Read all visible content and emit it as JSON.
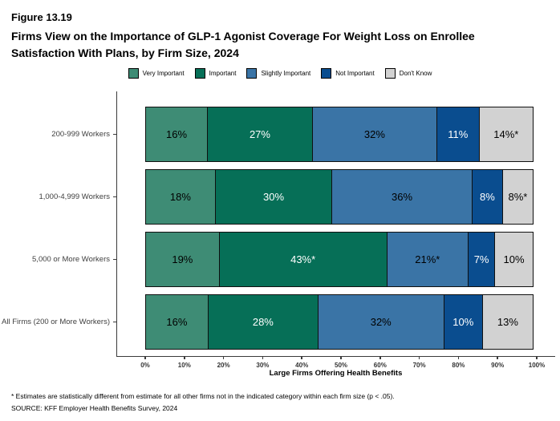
{
  "figure_label": "Figure 13.19",
  "title": "Firms View on the Importance of GLP-1 Agonist Coverage For Weight Loss on Enrollee Satisfaction With Plans, by Firm Size, 2024",
  "chart_data": {
    "type": "bar",
    "orientation": "horizontal-stacked",
    "stacked": true,
    "xlim": [
      0,
      100
    ],
    "grid": false,
    "legend_position": "top-center",
    "categories": [
      "200-999 Workers",
      "1,000-4,999 Workers",
      "5,000 or More Workers",
      "All Firms (200 or More Workers)"
    ],
    "series": [
      {
        "name": "Very Important",
        "color": "#3E8C75",
        "label_color": "#000000",
        "values": [
          16,
          18,
          19,
          16
        ],
        "labels": [
          "16%",
          "18%",
          "19%",
          "16%"
        ]
      },
      {
        "name": "Important",
        "color": "#066F57",
        "label_color": "#FFFFFF",
        "values": [
          27,
          30,
          43,
          28
        ],
        "labels": [
          "27%",
          "30%",
          "43%*",
          "28%"
        ]
      },
      {
        "name": "Slightly Important",
        "color": "#3A74A6",
        "label_color": "#000000",
        "values": [
          32,
          36,
          21,
          32
        ],
        "labels": [
          "32%",
          "36%",
          "21%*",
          "32%"
        ]
      },
      {
        "name": "Not Important",
        "color": "#0A4D8F",
        "label_color": "#FFFFFF",
        "values": [
          11,
          8,
          7,
          10
        ],
        "labels": [
          "11%",
          "8%",
          "7%",
          "10%"
        ]
      },
      {
        "name": "Don't Know",
        "color": "#D2D2D2",
        "label_color": "#000000",
        "values": [
          14,
          8,
          10,
          13
        ],
        "labels": [
          "14%*",
          "8%*",
          "10%",
          "13%"
        ]
      }
    ],
    "x_ticks": [
      "0%",
      "10%",
      "20%",
      "30%",
      "40%",
      "50%",
      "60%",
      "70%",
      "80%",
      "90%",
      "100%"
    ],
    "xlabel": "Large Firms Offering Health Benefits"
  },
  "footnote": "* Estimates are statistically different from estimate for all other firms not in the indicated category within each firm size (p < .05).",
  "source": "SOURCE: KFF Employer Health Benefits Survey, 2024"
}
